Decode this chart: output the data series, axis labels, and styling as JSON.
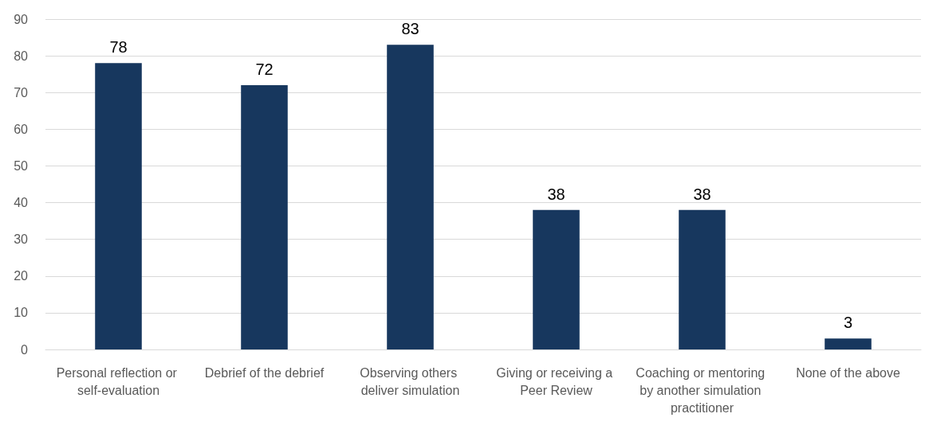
{
  "chart_data": {
    "type": "bar",
    "categories": [
      "Personal reflection or self-evaluation",
      "Debrief of the debrief",
      "Observing others deliver simulation",
      "Giving or receiving a Peer Review",
      "Coaching or mentoring by another simulation practitioner",
      "None of the above"
    ],
    "values": [
      78,
      72,
      83,
      38,
      38,
      3
    ],
    "color": "#17375e",
    "ylim": [
      0,
      90
    ],
    "yticks": [
      0,
      10,
      20,
      30,
      40,
      50,
      60,
      70,
      80,
      90
    ],
    "grid": "y",
    "data_labels": true
  }
}
